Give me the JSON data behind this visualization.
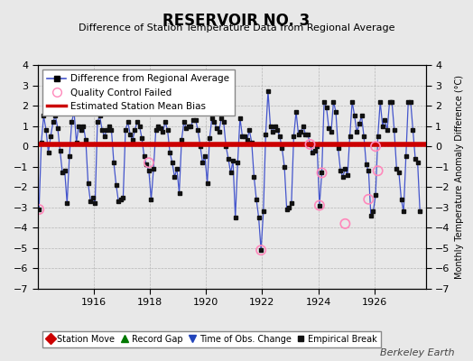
{
  "title": "RESERVOIR NO. 3",
  "subtitle": "Difference of Station Temperature Data from Regional Average",
  "ylabel_right": "Monthly Temperature Anomaly Difference (°C)",
  "bias": 0.08,
  "ylim": [
    -7,
    4
  ],
  "xlim": [
    1914.0,
    1927.83
  ],
  "xticks": [
    1916,
    1918,
    1920,
    1922,
    1924,
    1926
  ],
  "yticks": [
    -7,
    -6,
    -5,
    -4,
    -3,
    -2,
    -1,
    0,
    1,
    2,
    3,
    4
  ],
  "background_color": "#e8e8e8",
  "plot_bg_color": "#e8e8e8",
  "line_color": "#4455cc",
  "marker_color": "#111111",
  "bias_color": "#cc0000",
  "qc_color": "#ff88bb",
  "watermark": "Berkeley Earth",
  "data": [
    [
      1914.042,
      -3.1
    ],
    [
      1914.125,
      0.2
    ],
    [
      1914.208,
      1.5
    ],
    [
      1914.292,
      0.8
    ],
    [
      1914.375,
      -0.3
    ],
    [
      1914.458,
      0.5
    ],
    [
      1914.542,
      1.2
    ],
    [
      1914.625,
      1.5
    ],
    [
      1914.708,
      0.9
    ],
    [
      1914.792,
      -0.2
    ],
    [
      1914.875,
      -1.3
    ],
    [
      1914.958,
      -1.2
    ],
    [
      1915.042,
      -2.8
    ],
    [
      1915.125,
      -0.5
    ],
    [
      1915.208,
      1.2
    ],
    [
      1915.292,
      1.7
    ],
    [
      1915.375,
      0.2
    ],
    [
      1915.458,
      1.0
    ],
    [
      1915.542,
      0.8
    ],
    [
      1915.625,
      1.0
    ],
    [
      1915.708,
      0.3
    ],
    [
      1915.792,
      -1.8
    ],
    [
      1915.875,
      -2.7
    ],
    [
      1915.958,
      -2.5
    ],
    [
      1916.042,
      -2.8
    ],
    [
      1916.125,
      1.2
    ],
    [
      1916.208,
      1.5
    ],
    [
      1916.292,
      0.8
    ],
    [
      1916.375,
      0.5
    ],
    [
      1916.458,
      0.8
    ],
    [
      1916.542,
      1.0
    ],
    [
      1916.625,
      0.8
    ],
    [
      1916.708,
      -0.8
    ],
    [
      1916.792,
      -1.9
    ],
    [
      1916.875,
      -2.7
    ],
    [
      1916.958,
      -2.6
    ],
    [
      1917.042,
      -2.5
    ],
    [
      1917.125,
      0.8
    ],
    [
      1917.208,
      1.2
    ],
    [
      1917.292,
      0.6
    ],
    [
      1917.375,
      0.3
    ],
    [
      1917.458,
      0.8
    ],
    [
      1917.542,
      1.2
    ],
    [
      1917.625,
      1.0
    ],
    [
      1917.708,
      0.4
    ],
    [
      1917.792,
      -0.5
    ],
    [
      1917.875,
      -0.9
    ],
    [
      1917.958,
      -1.2
    ],
    [
      1918.042,
      -2.6
    ],
    [
      1918.125,
      -1.1
    ],
    [
      1918.208,
      0.8
    ],
    [
      1918.292,
      1.0
    ],
    [
      1918.375,
      0.9
    ],
    [
      1918.458,
      0.7
    ],
    [
      1918.542,
      1.2
    ],
    [
      1918.625,
      0.8
    ],
    [
      1918.708,
      -0.3
    ],
    [
      1918.792,
      -0.8
    ],
    [
      1918.875,
      -1.5
    ],
    [
      1918.958,
      -1.1
    ],
    [
      1919.042,
      -2.3
    ],
    [
      1919.125,
      0.3
    ],
    [
      1919.208,
      1.2
    ],
    [
      1919.292,
      0.9
    ],
    [
      1919.375,
      1.0
    ],
    [
      1919.458,
      1.0
    ],
    [
      1919.542,
      1.3
    ],
    [
      1919.625,
      1.3
    ],
    [
      1919.708,
      0.8
    ],
    [
      1919.792,
      0.0
    ],
    [
      1919.875,
      -0.8
    ],
    [
      1919.958,
      -0.5
    ],
    [
      1920.042,
      -1.8
    ],
    [
      1920.125,
      0.4
    ],
    [
      1920.208,
      1.4
    ],
    [
      1920.292,
      1.2
    ],
    [
      1920.375,
      0.9
    ],
    [
      1920.458,
      0.7
    ],
    [
      1920.542,
      1.4
    ],
    [
      1920.625,
      1.2
    ],
    [
      1920.708,
      0.0
    ],
    [
      1920.792,
      -0.6
    ],
    [
      1920.875,
      -1.3
    ],
    [
      1920.958,
      -0.7
    ],
    [
      1921.042,
      -3.5
    ],
    [
      1921.125,
      -0.8
    ],
    [
      1921.208,
      1.4
    ],
    [
      1921.292,
      0.5
    ],
    [
      1921.375,
      0.5
    ],
    [
      1921.458,
      0.3
    ],
    [
      1921.542,
      0.8
    ],
    [
      1921.625,
      0.2
    ],
    [
      1921.708,
      -1.5
    ],
    [
      1921.792,
      -2.6
    ],
    [
      1921.875,
      -3.5
    ],
    [
      1921.958,
      -5.1
    ],
    [
      1922.042,
      -3.2
    ],
    [
      1922.125,
      0.6
    ],
    [
      1922.208,
      2.7
    ],
    [
      1922.292,
      1.0
    ],
    [
      1922.375,
      0.7
    ],
    [
      1922.458,
      1.0
    ],
    [
      1922.542,
      0.8
    ],
    [
      1922.625,
      0.5
    ],
    [
      1922.708,
      -0.1
    ],
    [
      1922.792,
      -1.0
    ],
    [
      1922.875,
      -3.1
    ],
    [
      1922.958,
      -3.0
    ],
    [
      1923.042,
      -2.8
    ],
    [
      1923.125,
      0.5
    ],
    [
      1923.208,
      1.7
    ],
    [
      1923.292,
      0.6
    ],
    [
      1923.375,
      0.7
    ],
    [
      1923.458,
      1.0
    ],
    [
      1923.542,
      0.6
    ],
    [
      1923.625,
      0.6
    ],
    [
      1923.708,
      0.1
    ],
    [
      1923.792,
      -0.3
    ],
    [
      1923.875,
      -0.2
    ],
    [
      1923.958,
      0.0
    ],
    [
      1924.042,
      -2.9
    ],
    [
      1924.125,
      -1.3
    ],
    [
      1924.208,
      2.2
    ],
    [
      1924.292,
      1.9
    ],
    [
      1924.375,
      0.9
    ],
    [
      1924.458,
      0.7
    ],
    [
      1924.542,
      2.2
    ],
    [
      1924.625,
      1.7
    ],
    [
      1924.708,
      -0.1
    ],
    [
      1924.792,
      -1.2
    ],
    [
      1924.875,
      -1.5
    ],
    [
      1924.958,
      -1.1
    ],
    [
      1925.042,
      -1.4
    ],
    [
      1925.125,
      0.5
    ],
    [
      1925.208,
      2.2
    ],
    [
      1925.292,
      1.5
    ],
    [
      1925.375,
      0.7
    ],
    [
      1925.458,
      1.1
    ],
    [
      1925.542,
      1.5
    ],
    [
      1925.625,
      0.5
    ],
    [
      1925.708,
      -0.9
    ],
    [
      1925.792,
      -1.2
    ],
    [
      1925.875,
      -3.4
    ],
    [
      1925.958,
      -3.2
    ],
    [
      1926.042,
      -2.4
    ],
    [
      1926.125,
      0.5
    ],
    [
      1926.208,
      2.2
    ],
    [
      1926.292,
      1.0
    ],
    [
      1926.375,
      1.3
    ],
    [
      1926.458,
      0.8
    ],
    [
      1926.542,
      2.2
    ],
    [
      1926.625,
      2.2
    ],
    [
      1926.708,
      0.8
    ],
    [
      1926.792,
      -1.1
    ],
    [
      1926.875,
      -1.3
    ],
    [
      1926.958,
      -2.6
    ],
    [
      1927.042,
      -3.2
    ],
    [
      1927.125,
      -0.5
    ],
    [
      1927.208,
      2.2
    ],
    [
      1927.292,
      2.2
    ],
    [
      1927.375,
      0.8
    ],
    [
      1927.458,
      -0.6
    ],
    [
      1927.542,
      -0.8
    ],
    [
      1927.625,
      -3.2
    ]
  ],
  "qc_points": [
    [
      1914.042,
      -3.1
    ],
    [
      1917.958,
      -0.8
    ],
    [
      1921.958,
      -5.1
    ],
    [
      1923.708,
      0.1
    ],
    [
      1924.042,
      -2.9
    ],
    [
      1924.125,
      -1.3
    ],
    [
      1924.958,
      -3.8
    ],
    [
      1925.792,
      -2.6
    ],
    [
      1926.042,
      0.0
    ],
    [
      1926.125,
      -1.2
    ]
  ]
}
